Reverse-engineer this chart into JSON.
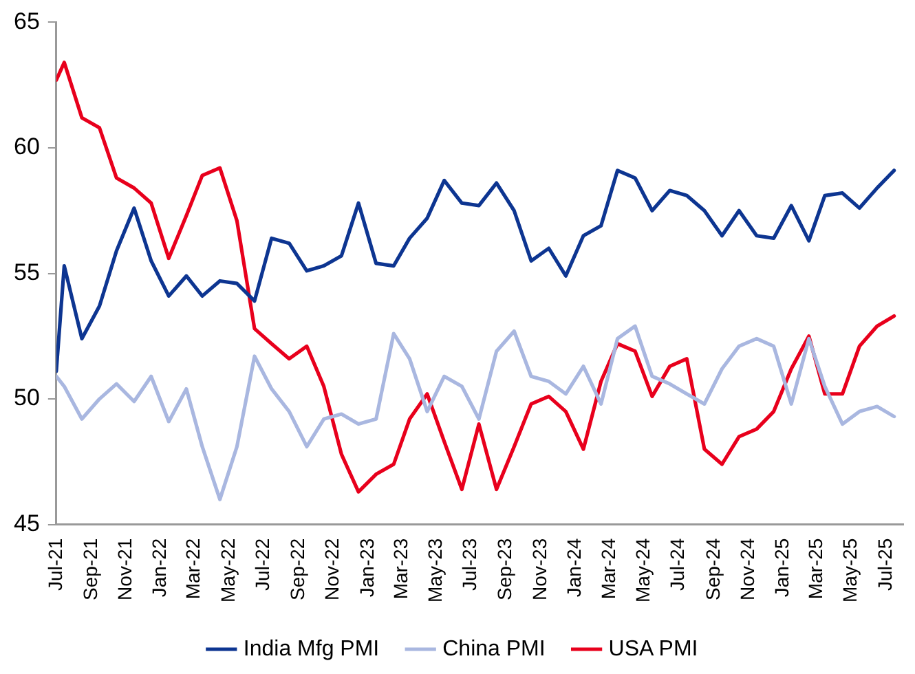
{
  "chart_data": {
    "type": "line",
    "x": [
      "2021-07-01",
      "2021-07-15",
      "2021-08-15",
      "2021-09-15",
      "2021-10-15",
      "2021-11-15",
      "2021-12-15",
      "2022-01-15",
      "2022-02-15",
      "2022-03-15",
      "2022-04-15",
      "2022-05-15",
      "2022-06-15",
      "2022-07-15",
      "2022-08-15",
      "2022-09-15",
      "2022-10-15",
      "2022-11-15",
      "2022-12-15",
      "2023-01-15",
      "2023-02-15",
      "2023-03-15",
      "2023-04-15",
      "2023-05-15",
      "2023-06-15",
      "2023-07-15",
      "2023-08-15",
      "2023-09-15",
      "2023-10-15",
      "2023-11-15",
      "2023-12-15",
      "2024-01-15",
      "2024-02-15",
      "2024-03-15",
      "2024-04-15",
      "2024-05-15",
      "2024-06-15",
      "2024-07-15",
      "2024-08-15",
      "2024-09-15",
      "2024-10-15",
      "2024-11-15",
      "2024-12-15",
      "2025-01-15",
      "2025-02-15",
      "2025-03-15",
      "2025-04-15",
      "2025-05-15",
      "2025-06-15",
      "2025-07-15"
    ],
    "series": [
      {
        "name": "India Mfg PMI",
        "color": "#0d3591",
        "values": [
          51.1,
          55.3,
          52.4,
          53.7,
          55.9,
          57.6,
          55.5,
          54.1,
          54.9,
          54.1,
          54.7,
          54.6,
          53.9,
          56.4,
          56.2,
          55.1,
          55.3,
          55.7,
          57.8,
          55.4,
          55.3,
          56.4,
          57.2,
          58.7,
          57.8,
          57.7,
          58.6,
          57.5,
          55.5,
          56.0,
          54.9,
          56.5,
          56.9,
          59.1,
          58.8,
          57.5,
          58.3,
          58.1,
          57.5,
          56.5,
          57.5,
          56.5,
          56.4,
          57.7,
          56.3,
          58.1,
          58.2,
          57.6,
          58.4,
          59.1
        ]
      },
      {
        "name": "China PMI",
        "color": "#a9b7e0",
        "values": [
          50.9,
          50.5,
          49.2,
          50.0,
          50.6,
          49.9,
          50.9,
          49.1,
          50.4,
          48.1,
          46.0,
          48.1,
          51.7,
          50.4,
          49.5,
          48.1,
          49.2,
          49.4,
          49.0,
          49.2,
          52.6,
          51.6,
          49.5,
          50.9,
          50.5,
          49.2,
          51.9,
          52.7,
          50.9,
          50.7,
          50.2,
          51.3,
          49.8,
          52.4,
          52.9,
          50.9,
          50.6,
          50.2,
          49.8,
          51.2,
          52.1,
          52.4,
          52.1,
          49.8,
          52.4,
          50.5,
          49.0,
          49.5,
          49.7,
          49.3
        ]
      },
      {
        "name": "USA PMI",
        "color": "#e8001c",
        "values": [
          62.7,
          63.4,
          61.2,
          60.8,
          58.8,
          58.4,
          57.8,
          55.6,
          57.3,
          58.9,
          59.2,
          57.1,
          52.8,
          52.2,
          51.6,
          52.1,
          50.5,
          47.8,
          46.3,
          47.0,
          47.4,
          49.2,
          50.2,
          48.3,
          46.4,
          49.0,
          46.4,
          48.1,
          49.8,
          50.1,
          49.5,
          48.0,
          50.7,
          52.2,
          51.9,
          50.1,
          51.3,
          51.6,
          48.0,
          47.4,
          48.5,
          48.8,
          49.5,
          51.2,
          52.5,
          50.2,
          50.2,
          52.1,
          52.9,
          53.3
        ]
      }
    ],
    "xlim": [
      "2021-07-01",
      "2025-07-31"
    ],
    "xticks": [
      {
        "value": "2021-07-01",
        "label": "Jul-21"
      },
      {
        "value": "2021-09-01",
        "label": "Sep-21"
      },
      {
        "value": "2021-11-01",
        "label": "Nov-21"
      },
      {
        "value": "2022-01-01",
        "label": "Jan-22"
      },
      {
        "value": "2022-03-01",
        "label": "Mar-22"
      },
      {
        "value": "2022-05-01",
        "label": "May-22"
      },
      {
        "value": "2022-07-01",
        "label": "Jul-22"
      },
      {
        "value": "2022-09-01",
        "label": "Sep-22"
      },
      {
        "value": "2022-11-01",
        "label": "Nov-22"
      },
      {
        "value": "2023-01-01",
        "label": "Jan-23"
      },
      {
        "value": "2023-03-01",
        "label": "Mar-23"
      },
      {
        "value": "2023-05-01",
        "label": "May-23"
      },
      {
        "value": "2023-07-01",
        "label": "Jul-23"
      },
      {
        "value": "2023-09-01",
        "label": "Sep-23"
      },
      {
        "value": "2023-11-01",
        "label": "Nov-23"
      },
      {
        "value": "2024-01-01",
        "label": "Jan-24"
      },
      {
        "value": "2024-03-01",
        "label": "Mar-24"
      },
      {
        "value": "2024-05-01",
        "label": "May-24"
      },
      {
        "value": "2024-07-01",
        "label": "Jul-24"
      },
      {
        "value": "2024-09-01",
        "label": "Sep-24"
      },
      {
        "value": "2024-11-01",
        "label": "Nov-24"
      },
      {
        "value": "2025-01-01",
        "label": "Jan-25"
      },
      {
        "value": "2025-03-01",
        "label": "Mar-25"
      },
      {
        "value": "2025-05-01",
        "label": "May-25"
      },
      {
        "value": "2025-07-01",
        "label": "Jul-25"
      }
    ],
    "ylim": [
      45,
      65
    ],
    "yticks": [
      45,
      50,
      55,
      60,
      65
    ],
    "grid": false,
    "legend": "bottom",
    "marker": "none",
    "line_style": "solid"
  }
}
